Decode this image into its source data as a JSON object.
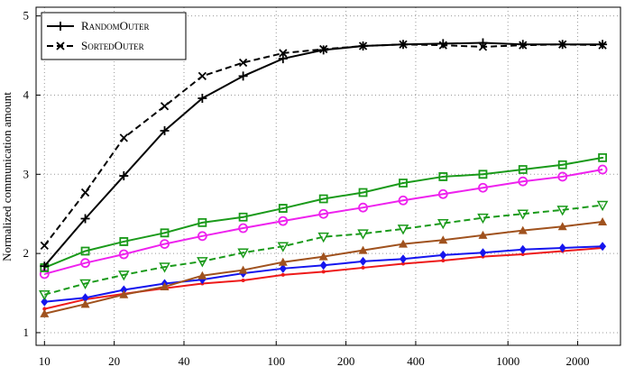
{
  "chart_data": {
    "type": "line",
    "y_label": "Normalized communication amount",
    "log_x": true,
    "grid": true,
    "legend": "top-left",
    "x": [
      10,
      15,
      22,
      33,
      48,
      72,
      107,
      160,
      237,
      353,
      525,
      780,
      1160,
      1720,
      2560
    ],
    "xlim": [
      9.2,
      3060
    ],
    "xticks": [
      10,
      20,
      40,
      100,
      200,
      400,
      1000,
      2000
    ],
    "ylim": [
      0.84,
      5.11
    ],
    "yticks": [
      1,
      2,
      3,
      4,
      5
    ],
    "series": [
      {
        "name": "RandomOuter",
        "color": "#000000",
        "dashed": false,
        "marker": "plus",
        "values": [
          1.84,
          2.44,
          2.98,
          3.55,
          3.96,
          4.24,
          4.46,
          4.57,
          4.62,
          4.64,
          4.65,
          4.66,
          4.64,
          4.64,
          4.64
        ]
      },
      {
        "name": "SortedOuter",
        "color": "#000000",
        "dashed": true,
        "marker": "cross",
        "values": [
          2.1,
          2.77,
          3.46,
          3.86,
          4.24,
          4.41,
          4.53,
          4.58,
          4.62,
          4.64,
          4.63,
          4.61,
          4.63,
          4.64,
          4.63
        ]
      },
      {
        "color": "#1a9a1a",
        "dashed": false,
        "marker": "square",
        "values": [
          1.82,
          2.03,
          2.15,
          2.26,
          2.39,
          2.46,
          2.57,
          2.69,
          2.77,
          2.89,
          2.97,
          3.0,
          3.06,
          3.12,
          3.21
        ]
      },
      {
        "color": "#ee22ee",
        "dashed": false,
        "marker": "circle",
        "values": [
          1.74,
          1.88,
          1.99,
          2.12,
          2.22,
          2.32,
          2.41,
          2.5,
          2.58,
          2.67,
          2.75,
          2.83,
          2.91,
          2.97,
          3.06
        ]
      },
      {
        "color": "#1a9a1a",
        "dashed": true,
        "marker": "tridown",
        "values": [
          1.48,
          1.62,
          1.73,
          1.83,
          1.9,
          2.01,
          2.09,
          2.21,
          2.25,
          2.31,
          2.38,
          2.45,
          2.5,
          2.55,
          2.61
        ]
      },
      {
        "color": "#a0521e",
        "dashed": false,
        "marker": "triup",
        "values": [
          1.24,
          1.36,
          1.48,
          1.58,
          1.72,
          1.79,
          1.89,
          1.96,
          2.04,
          2.12,
          2.17,
          2.23,
          2.29,
          2.34,
          2.4
        ]
      },
      {
        "color": "#1515ee",
        "dashed": false,
        "marker": "diamond",
        "values": [
          1.39,
          1.44,
          1.54,
          1.62,
          1.67,
          1.75,
          1.81,
          1.85,
          1.9,
          1.93,
          1.98,
          2.01,
          2.05,
          2.07,
          2.09
        ]
      },
      {
        "color": "#ee1a1a",
        "dashed": false,
        "marker": "dot",
        "values": [
          1.3,
          1.42,
          1.49,
          1.56,
          1.62,
          1.66,
          1.73,
          1.77,
          1.82,
          1.87,
          1.91,
          1.96,
          1.99,
          2.03,
          2.07
        ]
      }
    ]
  }
}
